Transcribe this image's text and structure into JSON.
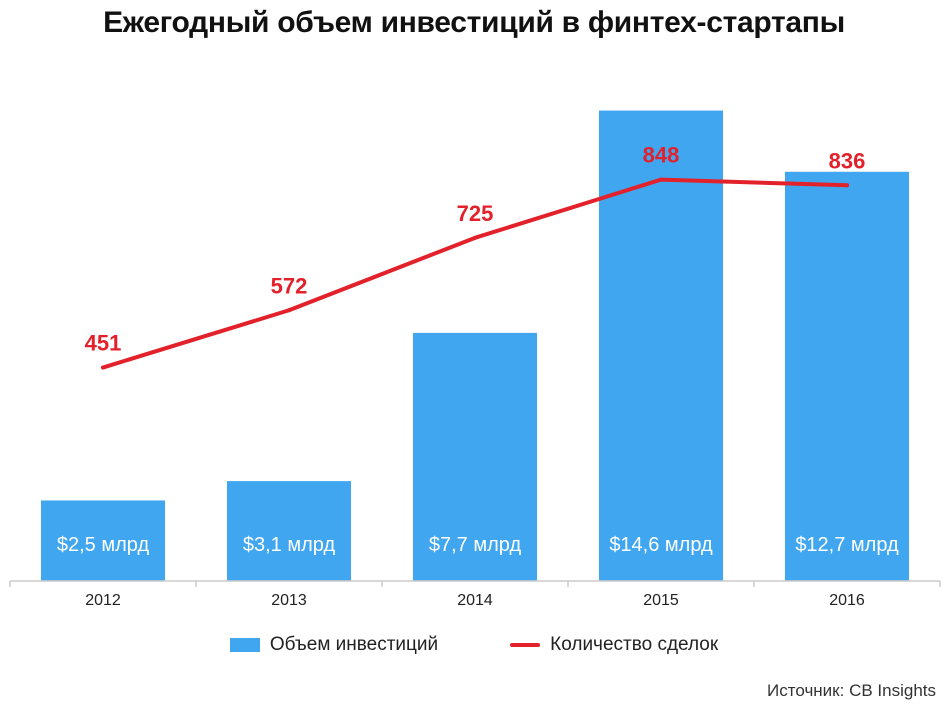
{
  "title": "Ежегодный объем инвестиций в финтех-стартапы",
  "source": "Источник: CB Insights",
  "colors": {
    "bar": "#40a6f0",
    "line": "#e3212b",
    "bar_text": "#ffffff",
    "axis": "#cccccc"
  },
  "legend": [
    {
      "label": "Объем инвестиций",
      "kind": "bar"
    },
    {
      "label": "Количество сделок",
      "kind": "line"
    }
  ],
  "chart_data": {
    "type": "bar",
    "title": "Ежегодный объем инвестиций в финтех-стартапы",
    "categories": [
      "2012",
      "2013",
      "2014",
      "2015",
      "2016"
    ],
    "series": [
      {
        "name": "Объем инвестиций",
        "type": "bar",
        "values": [
          2.5,
          3.1,
          7.7,
          14.6,
          12.7
        ],
        "labels": [
          "$2,5 млрд",
          "$3,1 млрд",
          "$7,7 млрд",
          "$14,6 млрд",
          "$12,7 млрд"
        ]
      },
      {
        "name": "Количество сделок",
        "type": "line",
        "values": [
          451,
          572,
          725,
          848,
          836
        ],
        "labels": [
          "451",
          "572",
          "725",
          "848",
          "836"
        ]
      }
    ],
    "bar_ylim": [
      0,
      15.3
    ],
    "line_ylim": [
      0,
      1200
    ],
    "grid": false,
    "legend_position": "bottom"
  }
}
